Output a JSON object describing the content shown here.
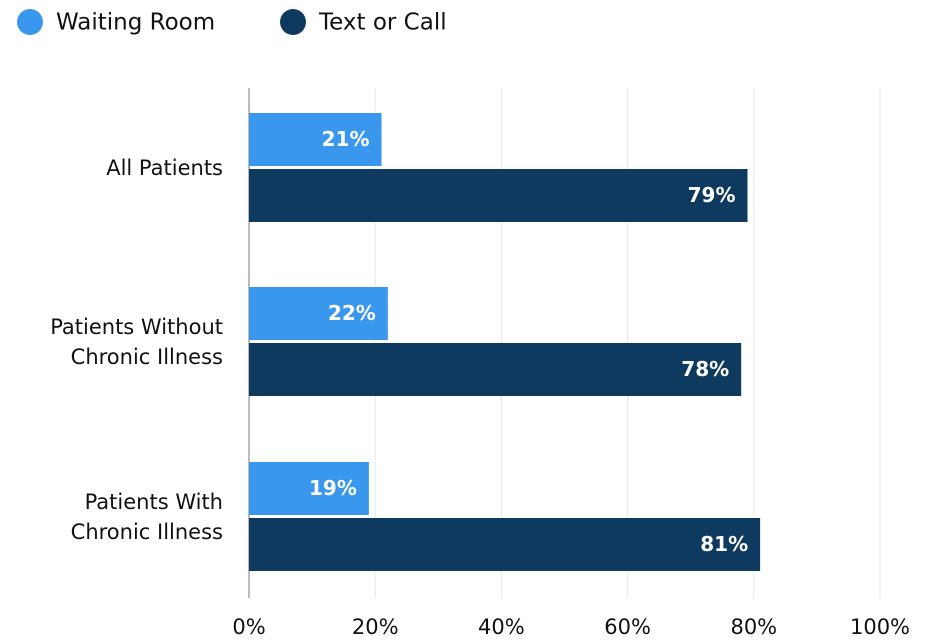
{
  "chart_data": {
    "type": "hbar",
    "categories": [
      "All Patients",
      "Patients Without Chronic Illness",
      "Patients With Chronic Illness"
    ],
    "series": [
      {
        "name": "Waiting Room",
        "color": "#3a97ee",
        "values": [
          21,
          22,
          19
        ],
        "value_labels": [
          "21%",
          "22%",
          "19%"
        ]
      },
      {
        "name": "Text or Call",
        "color": "#0f3a5f",
        "values": [
          79,
          78,
          81
        ],
        "value_labels": [
          "79%",
          "78%",
          "81%"
        ]
      }
    ],
    "xlim": [
      0,
      100
    ],
    "xticks": [
      {
        "value": 0,
        "label": "0%"
      },
      {
        "value": 20,
        "label": "20%"
      },
      {
        "value": 40,
        "label": "40%"
      },
      {
        "value": 60,
        "label": "60%"
      },
      {
        "value": 80,
        "label": "80%"
      },
      {
        "value": 100,
        "label": "100%"
      }
    ],
    "grid": true,
    "legend": "top-left"
  }
}
